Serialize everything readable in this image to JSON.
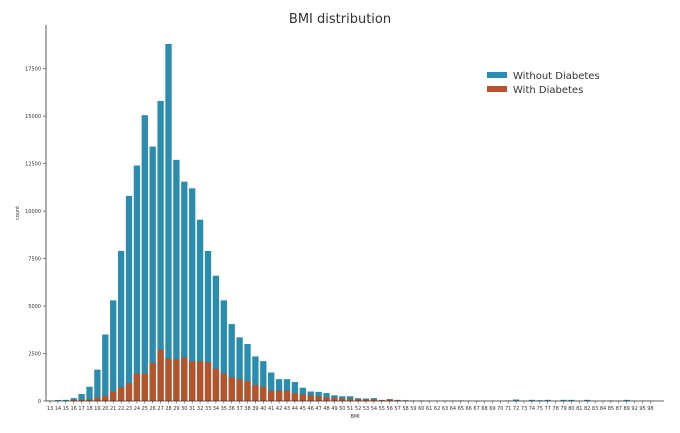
{
  "chart_data": {
    "type": "bar",
    "title": "BMI distribution",
    "xlabel": "BMI",
    "ylabel": "count",
    "ylim": [
      0,
      19800
    ],
    "yticks": [
      0,
      2500,
      5000,
      7500,
      10000,
      12500,
      15000,
      17500
    ],
    "grid": false,
    "legend_position": "top-right",
    "categories": [
      "13",
      "14",
      "15",
      "16",
      "17",
      "18",
      "19",
      "20",
      "21",
      "22",
      "23",
      "24",
      "25",
      "26",
      "27",
      "28",
      "29",
      "30",
      "31",
      "32",
      "33",
      "34",
      "35",
      "36",
      "37",
      "38",
      "39",
      "40",
      "41",
      "42",
      "43",
      "44",
      "45",
      "46",
      "47",
      "48",
      "49",
      "50",
      "51",
      "52",
      "53",
      "54",
      "55",
      "56",
      "57",
      "58",
      "59",
      "60",
      "61",
      "62",
      "63",
      "64",
      "65",
      "66",
      "67",
      "68",
      "69",
      "70",
      "71",
      "72",
      "73",
      "74",
      "75",
      "77",
      "78",
      "79",
      "80",
      "81",
      "82",
      "83",
      "84",
      "85",
      "87",
      "89",
      "92",
      "95",
      "98"
    ],
    "series": [
      {
        "name": "Without Diabetes",
        "color": "#2a8cae",
        "values": [
          20,
          50,
          60,
          150,
          370,
          750,
          1650,
          3500,
          5300,
          7900,
          10800,
          12400,
          15050,
          13400,
          15800,
          18800,
          12700,
          11550,
          11200,
          9550,
          7900,
          6600,
          5300,
          4050,
          3350,
          3000,
          2350,
          2100,
          1500,
          1150,
          1150,
          1000,
          700,
          500,
          480,
          420,
          300,
          250,
          250,
          150,
          130,
          150,
          60,
          100,
          60,
          40,
          30,
          30,
          25,
          25,
          25,
          25,
          30,
          15,
          15,
          15,
          15,
          15,
          30,
          80,
          20,
          60,
          40,
          60,
          20,
          60,
          60,
          20,
          60,
          20,
          20,
          30,
          20,
          60,
          20,
          20,
          20
        ]
      },
      {
        "name": "With Diabetes",
        "color": "#b5532a",
        "values": [
          5,
          10,
          20,
          50,
          80,
          100,
          180,
          270,
          500,
          720,
          950,
          1450,
          1450,
          2000,
          2700,
          2250,
          2200,
          2300,
          2100,
          2100,
          2050,
          1700,
          1450,
          1250,
          1150,
          1050,
          850,
          750,
          550,
          550,
          550,
          400,
          350,
          300,
          250,
          200,
          180,
          150,
          120,
          80,
          80,
          70,
          50,
          90,
          40,
          30,
          20,
          20,
          15,
          20,
          15,
          15,
          20,
          5,
          5,
          5,
          5,
          5,
          10,
          10,
          5,
          10,
          10,
          10,
          5,
          10,
          10,
          5,
          10,
          5,
          5,
          5,
          5,
          10,
          5,
          5,
          5
        ]
      }
    ]
  }
}
